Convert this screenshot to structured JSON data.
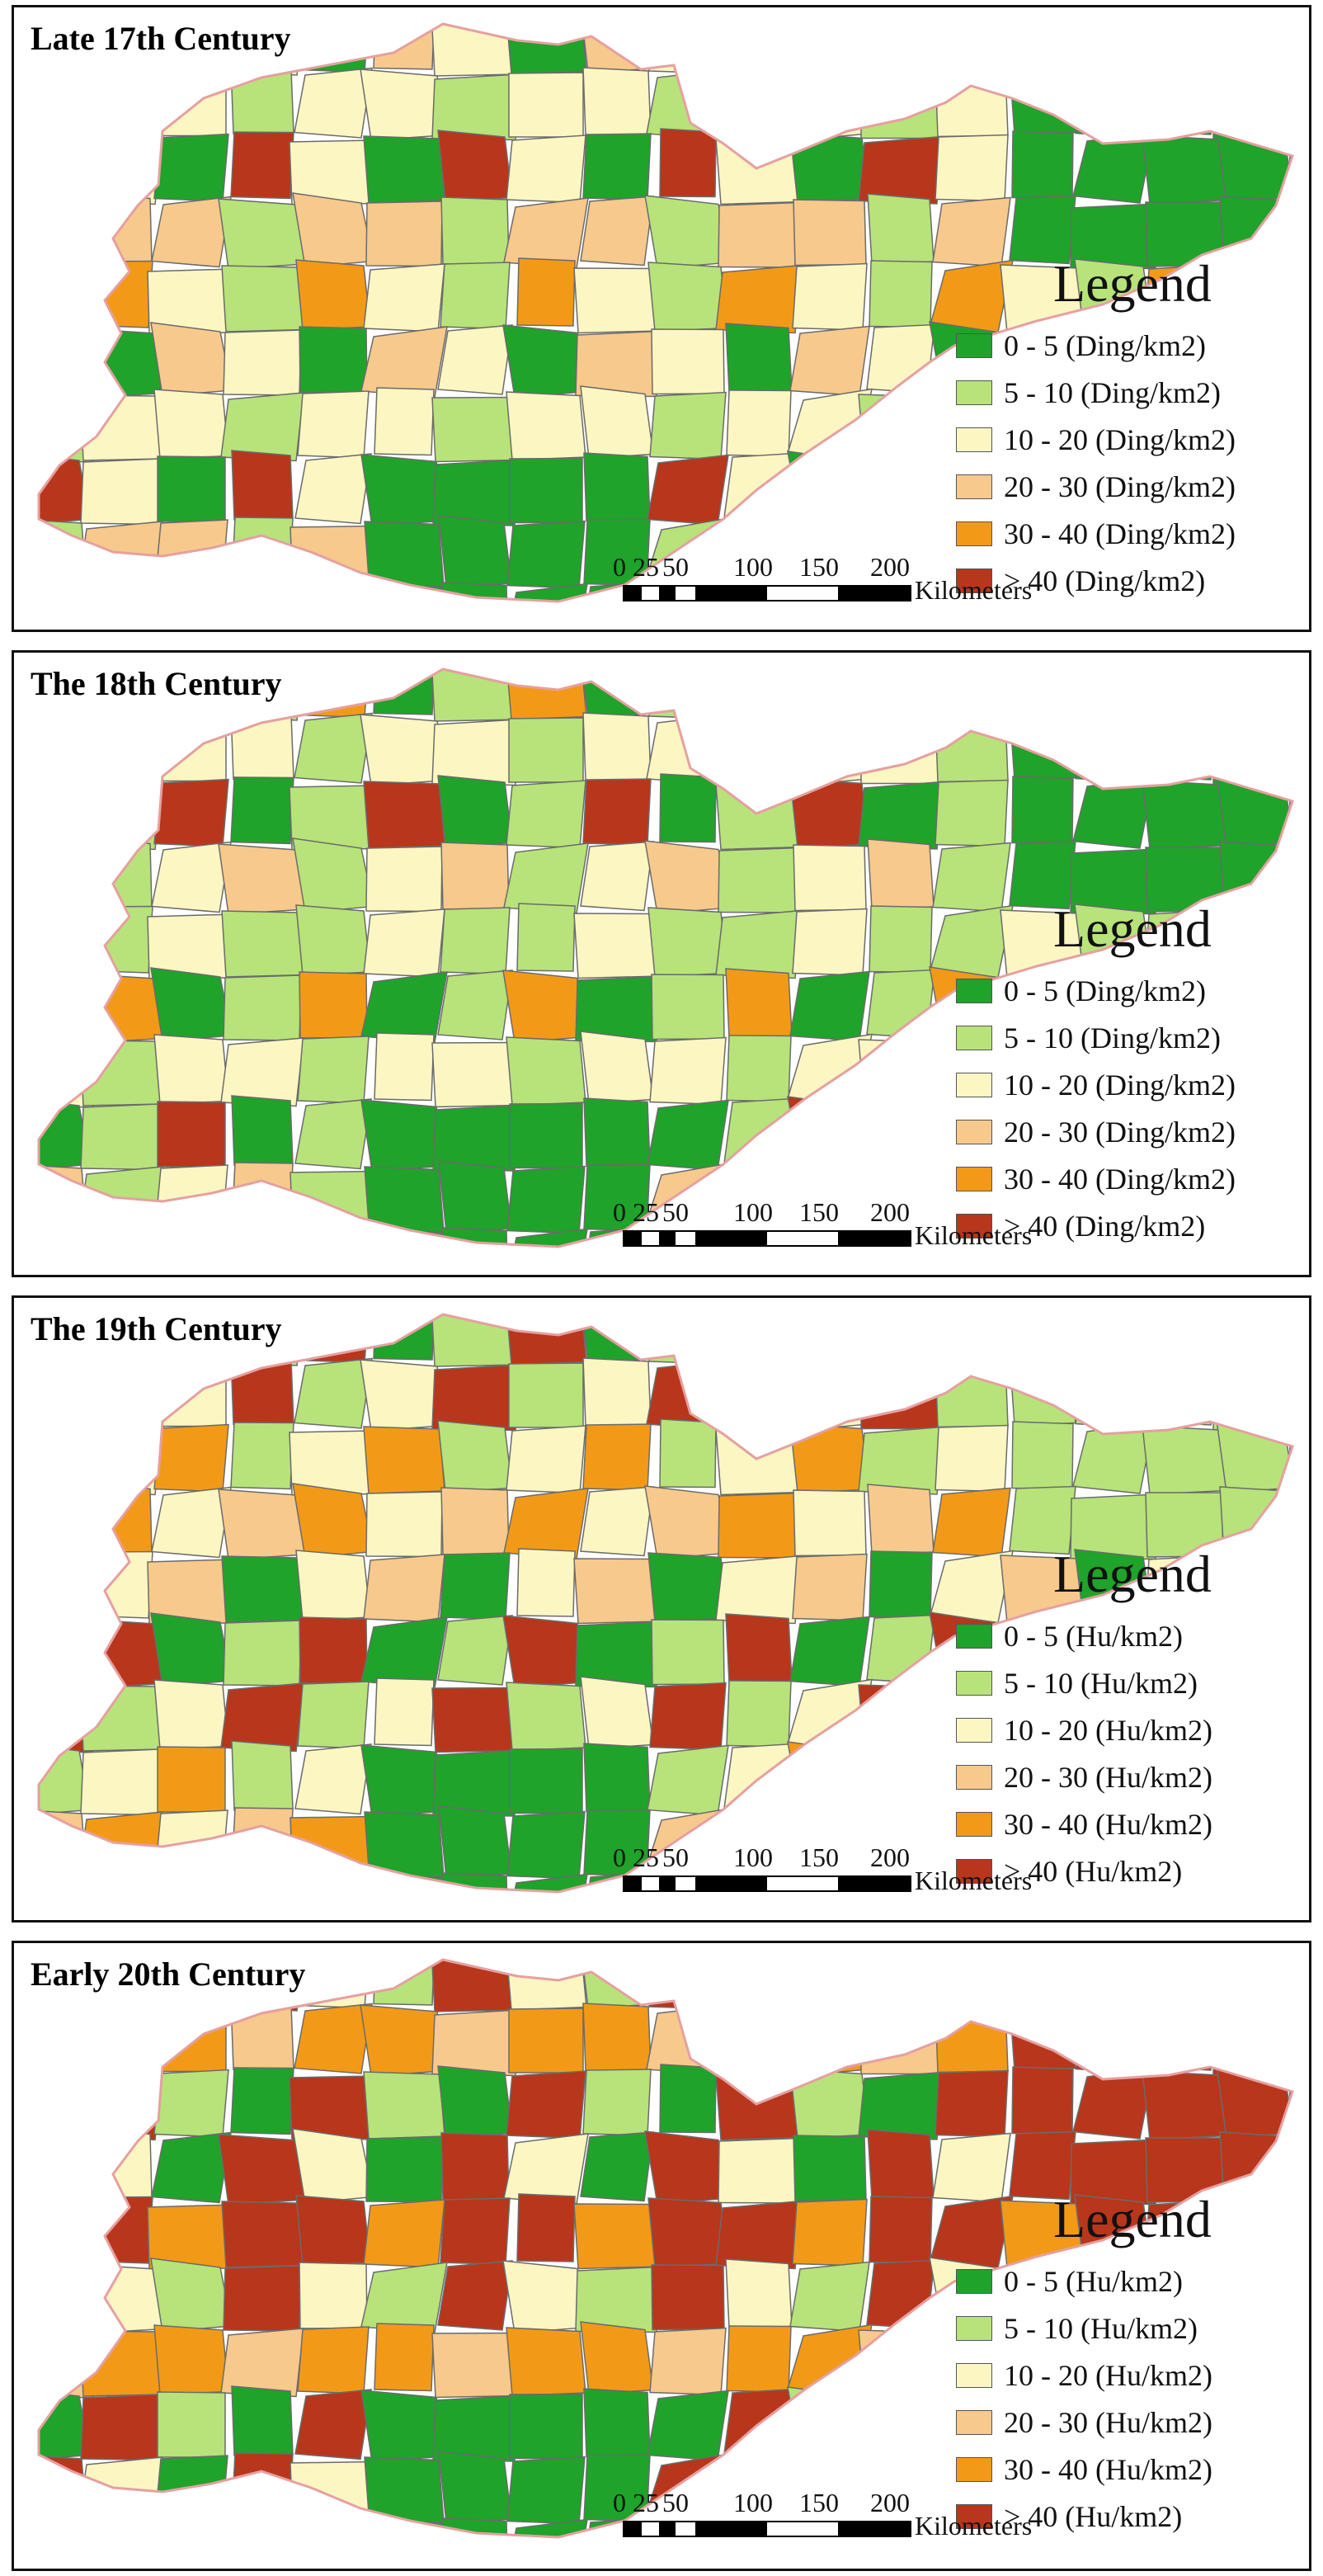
{
  "legend_title": "Legend",
  "scale": {
    "ticks": [
      "0",
      "25",
      "50",
      "100",
      "150",
      "200"
    ],
    "unit": "Kilometers"
  },
  "panels": [
    {
      "title": "Late 17th Century",
      "legend": [
        {
          "label": "0 - 5 (Ding/km2)",
          "color": "#1fa32a"
        },
        {
          "label": "5 - 10 (Ding/km2)",
          "color": "#b7e37a"
        },
        {
          "label": "10 - 20 (Ding/km2)",
          "color": "#fcf6c3"
        },
        {
          "label": "20 - 30 (Ding/km2)",
          "color": "#f7c98c"
        },
        {
          "label": "30 - 40 (Ding/km2)",
          "color": "#f29a17"
        },
        {
          "label": "> 40 (Ding/km2)",
          "color": "#b8361b"
        }
      ]
    },
    {
      "title": "The 18th Century",
      "legend": [
        {
          "label": "0 - 5 (Ding/km2)",
          "color": "#1fa32a"
        },
        {
          "label": "5 - 10 (Ding/km2)",
          "color": "#b7e37a"
        },
        {
          "label": "10 - 20 (Ding/km2)",
          "color": "#fcf6c3"
        },
        {
          "label": "20 - 30 (Ding/km2)",
          "color": "#f7c98c"
        },
        {
          "label": "30 - 40 (Ding/km2)",
          "color": "#f29a17"
        },
        {
          "label": "> 40 (Ding/km2)",
          "color": "#b8361b"
        }
      ]
    },
    {
      "title": "The 19th Century",
      "legend": [
        {
          "label": "0 - 5 (Hu/km2)",
          "color": "#1fa32a"
        },
        {
          "label": "5 - 10 (Hu/km2)",
          "color": "#b7e37a"
        },
        {
          "label": "10 - 20 (Hu/km2)",
          "color": "#fcf6c3"
        },
        {
          "label": "20 - 30 (Hu/km2)",
          "color": "#f7c98c"
        },
        {
          "label": "30 - 40 (Hu/km2)",
          "color": "#f29a17"
        },
        {
          "label": "> 40 (Hu/km2)",
          "color": "#b8361b"
        }
      ]
    },
    {
      "title": "Early 20th Century",
      "legend": [
        {
          "label": "0 - 5 (Hu/km2)",
          "color": "#1fa32a"
        },
        {
          "label": "5 - 10 (Hu/km2)",
          "color": "#b7e37a"
        },
        {
          "label": "10 - 20 (Hu/km2)",
          "color": "#fcf6c3"
        },
        {
          "label": "20 - 30 (Hu/km2)",
          "color": "#f7c98c"
        },
        {
          "label": "30 - 40 (Hu/km2)",
          "color": "#f29a17"
        },
        {
          "label": "> 40 (Hu/km2)",
          "color": "#b8361b"
        }
      ]
    }
  ]
}
